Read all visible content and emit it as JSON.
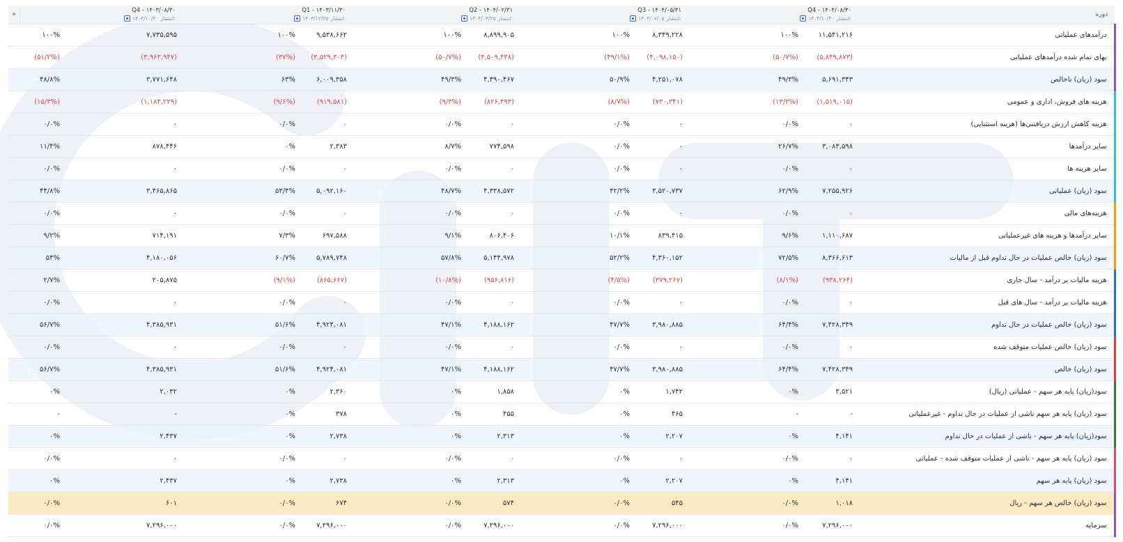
{
  "header": {
    "label": "دوره",
    "nav_symbol": "»",
    "published_prefix": "انتشار:",
    "periods": [
      {
        "title": "Q4 - ۱۴۰۳/۰۸/۳۰",
        "published": "۱۴۰۴/۱۰/۳۰"
      },
      {
        "title": "Q1 - ۱۴۰۳/۱۱/۳۰",
        "published": "۱۴۰۳/۱۲/۲۵"
      },
      {
        "title": "Q2 - ۱۴۰۴/۰۲/۳۱",
        "published": "۱۴۰۴/۰۳/۲۵"
      },
      {
        "title": "Q3 - ۱۴۰۴/۰۵/۳۱",
        "published": "۱۴۰۴/۰۷/۰۵"
      },
      {
        "title": "Q4 - ۱۴۰۴/۰۸/۳۰",
        "published": "۱۴۰۴/۱۰/۳۰"
      }
    ]
  },
  "rows": [
    {
      "label": "درآمدهای عملیاتی",
      "accent": "#7e57c2",
      "style": "",
      "cells": [
        [
          "۷,۷۳۵,۵۹۵",
          "۱۰۰%"
        ],
        [
          "۹,۵۳۸,۶۶۲",
          "۱۰۰%"
        ],
        [
          "۸,۸۹۹,۹۰۵",
          "۱۰۰%"
        ],
        [
          "۸,۳۴۹,۲۲۸",
          "۱۰۰%"
        ],
        [
          "۱۱,۵۴۱,۲۱۶",
          "۱۰۰%"
        ]
      ]
    },
    {
      "label": "بهای تمام شده درآمدهای عملیاتی",
      "accent": "#7e57c2",
      "style": "",
      "neg": true,
      "cells": [
        [
          "(۳,۹۶۳,۹۴۷)",
          "(۵۱/۲%)"
        ],
        [
          "(۳,۵۲۹,۳۰۴)",
          "(۳۷%)"
        ],
        [
          "(۴,۵۰۹,۴۳۸)",
          "(۵۰/۷%)"
        ],
        [
          "(۴,۰۹۸,۱۵۰)",
          "(۴۹/۱%)"
        ],
        [
          "(۵,۸۴۹,۸۷۳)",
          "(۵۰/۷%)"
        ]
      ]
    },
    {
      "label": "سود (زیان) ناخالص",
      "accent": "#7e57c2",
      "style": "alt",
      "cells": [
        [
          "۳,۷۷۱,۶۴۸",
          "۴۸/۸%"
        ],
        [
          "۶,۰۰۹,۳۵۸",
          "۶۳%"
        ],
        [
          "۴,۳۹۰,۴۶۷",
          "۴۹/۳%"
        ],
        [
          "۴,۲۵۱,۰۷۸",
          "۵۰/۹%"
        ],
        [
          "۵,۶۹۱,۳۴۳",
          "۴۹/۳%"
        ]
      ]
    },
    {
      "label": "هزینه های فروش، اداری و عمومی",
      "accent": "#26c6da",
      "style": "",
      "neg": true,
      "cells": [
        [
          "(۱,۱۸۴,۲۲۹)",
          "(۱۵/۳%)"
        ],
        [
          "(۹۱۹,۵۸۱)",
          "(۹/۶%)"
        ],
        [
          "(۸۲۶,۴۹۳)",
          "(۹/۳%)"
        ],
        [
          "(۷۳۰,۳۴۱)",
          "(۸/۷%)"
        ],
        [
          "(۱,۵۱۹,۰۱۵)",
          "(۱۳/۲%)"
        ]
      ]
    },
    {
      "label": "هزینه کاهش ارزش دریافتنی‌ها (هزینه استثنایی)",
      "accent": "#26c6da",
      "style": "",
      "cells": [
        [
          "۰",
          "۰/۰%"
        ],
        [
          "۰",
          "۰/۰%"
        ],
        [
          "۰",
          "۰/۰%"
        ],
        [
          "۰",
          "۰/۰%"
        ],
        [
          "۰",
          "۰/۰%"
        ]
      ]
    },
    {
      "label": "سایر درآمدها",
      "accent": "#26c6da",
      "style": "",
      "cells": [
        [
          "۸۷۸,۴۴۶",
          "۱۱/۴%"
        ],
        [
          "۲,۳۸۳",
          "۰%"
        ],
        [
          "۷۷۴,۵۹۸",
          "۸/۷%"
        ],
        [
          "۰",
          "۰/۰%"
        ],
        [
          "۳,۰۸۳,۵۹۸",
          "۲۶/۷%"
        ]
      ]
    },
    {
      "label": "سایر هزینه ها",
      "accent": "#26c6da",
      "style": "",
      "cells": [
        [
          "۰",
          "۰/۰%"
        ],
        [
          "۰",
          "۰/۰%"
        ],
        [
          "۰",
          "۰/۰%"
        ],
        [
          "۰",
          "۰/۰%"
        ],
        [
          "۰",
          "۰/۰%"
        ]
      ]
    },
    {
      "label": "سود (زیان) عملیاتی",
      "accent": "#26c6da",
      "style": "alt",
      "cells": [
        [
          "۳,۴۶۵,۸۶۵",
          "۴۴/۸%"
        ],
        [
          "۵,۰۹۲,۱۶۰",
          "۵۳/۴%"
        ],
        [
          "۴,۳۳۸,۵۷۲",
          "۴۸/۷%"
        ],
        [
          "۳,۵۲۰,۷۳۷",
          "۴۲/۲%"
        ],
        [
          "۷,۲۵۵,۹۲۶",
          "۶۲/۹%"
        ]
      ]
    },
    {
      "label": "هزینه‌های مالی",
      "accent": "#ff9800",
      "style": "",
      "cells": [
        [
          "۰",
          "۰/۰%"
        ],
        [
          "۰",
          "۰/۰%"
        ],
        [
          "۰",
          "۰/۰%"
        ],
        [
          "۰",
          "۰/۰%"
        ],
        [
          "۰",
          "۰/۰%"
        ]
      ]
    },
    {
      "label": "سایر درآمدها و هزینه های غیرعملیاتی",
      "accent": "#ff9800",
      "style": "",
      "cells": [
        [
          "۷۱۴,۱۹۱",
          "۹/۲%"
        ],
        [
          "۶۹۷,۵۸۸",
          "۷/۳%"
        ],
        [
          "۸۰۶,۴۰۶",
          "۹/۱%"
        ],
        [
          "۸۳۹,۴۱۵",
          "۱۰/۱%"
        ],
        [
          "۱,۱۱۰,۶۸۷",
          "۹/۶%"
        ]
      ]
    },
    {
      "label": "سود (زیان) خالص عملیات در حال تداوم قبل از مالیات",
      "accent": "#ff9800",
      "style": "alt",
      "cells": [
        [
          "۴,۱۸۰,۰۵۶",
          "۵۴%"
        ],
        [
          "۵,۷۸۹,۷۴۸",
          "۶۰/۷%"
        ],
        [
          "۵,۱۴۴,۹۷۸",
          "۵۷/۸%"
        ],
        [
          "۴,۳۶۰,۱۵۲",
          "۵۲/۲%"
        ],
        [
          "۸,۳۶۶,۶۱۳",
          "۷۲/۵%"
        ]
      ]
    },
    {
      "label": "هزینه مالیات بر درآمد - سال جاری",
      "accent": "#1e6fd9",
      "style": "",
      "mixed": true,
      "cells": [
        [
          "۲۰۵,۸۷۵",
          "۲/۷%"
        ],
        [
          "(۸۶۵,۶۶۷)",
          "(۹/۱%)"
        ],
        [
          "(۹۵۶,۸۱۶)",
          "(۱۰/۸%)"
        ],
        [
          "(۳۷۹,۲۶۷)",
          "(۴/۵%)"
        ],
        [
          "(۹۳۸,۲۶۴)",
          "(۸/۱%)"
        ]
      ]
    },
    {
      "label": "هزینه مالیات بر درآمد - سال های قبل",
      "accent": "#1e6fd9",
      "style": "",
      "cells": [
        [
          "۰",
          "۰/۰%"
        ],
        [
          "۰",
          "۰/۰%"
        ],
        [
          "۰",
          "۰/۰%"
        ],
        [
          "۰",
          "۰/۰%"
        ],
        [
          "۰",
          "۰/۰%"
        ]
      ]
    },
    {
      "label": "سود (زیان) خالص عملیات در حال تداوم",
      "accent": "#1e6fd9",
      "style": "alt",
      "cells": [
        [
          "۴,۳۸۵,۹۳۱",
          "۵۶/۷%"
        ],
        [
          "۴,۹۲۴,۰۸۱",
          "۵۱/۶%"
        ],
        [
          "۴,۱۸۸,۱۶۲",
          "۴۷/۱%"
        ],
        [
          "۳,۹۸۰,۸۸۵",
          "۴۷/۷%"
        ],
        [
          "۷,۴۲۸,۳۴۹",
          "۶۴/۴%"
        ]
      ]
    },
    {
      "label": "سود (زیان) خالص عملیات متوقف شده",
      "accent": "#e53935",
      "style": "",
      "cells": [
        [
          "۰",
          "۰/۰%"
        ],
        [
          "۰",
          "۰/۰%"
        ],
        [
          "۰",
          "۰/۰%"
        ],
        [
          "۰",
          "۰/۰%"
        ],
        [
          "۰",
          "۰/۰%"
        ]
      ]
    },
    {
      "label": "سود (زیان) خالص",
      "accent": "#e53935",
      "style": "alt",
      "cells": [
        [
          "۴,۳۸۵,۹۳۱",
          "۵۶/۷%"
        ],
        [
          "۴,۹۲۴,۰۸۱",
          "۵۱/۶%"
        ],
        [
          "۴,۱۸۸,۱۶۲",
          "۴۷/۱%"
        ],
        [
          "۳,۹۸۰,۸۸۵",
          "۴۷/۷%"
        ],
        [
          "۷,۴۲۸,۳۴۹",
          "۶۴/۴%"
        ]
      ]
    },
    {
      "label": "سود(زیان) پایه هر سهم - عملیاتی (ریال)",
      "accent": "#2e7d32",
      "style": "",
      "cells": [
        [
          "۲,۰۳۲",
          "۰%"
        ],
        [
          "۲,۳۶۰",
          "۰%"
        ],
        [
          "۱,۸۵۸",
          "۰%"
        ],
        [
          "۱,۷۴۲",
          "۰%"
        ],
        [
          "۳,۵۲۱",
          "۰%"
        ]
      ]
    },
    {
      "label": "سود (زیان) پایه هر سهم ناشی از عملیات در حال تداوم - غیرعملیاتی",
      "accent": "#2e7d32",
      "style": "",
      "cells": [
        [
          "-",
          "-"
        ],
        [
          "۳۷۸",
          "۰%"
        ],
        [
          "۴۵۵",
          "۰%"
        ],
        [
          "۴۶۵",
          "۰%"
        ],
        [
          "-",
          "-"
        ]
      ]
    },
    {
      "label": "سود(زیان) پایه هر سهم - ناشی از عملیات در حال تداوم",
      "accent": "#2e7d32",
      "style": "alt",
      "cells": [
        [
          "۲,۴۳۷",
          "۰%"
        ],
        [
          "۲,۷۳۸",
          "۰%"
        ],
        [
          "۲,۳۱۳",
          "۰%"
        ],
        [
          "۲,۲۰۷",
          "۰%"
        ],
        [
          "۴,۱۴۱",
          "۰%"
        ]
      ]
    },
    {
      "label": "سود (زیان) پایه هر سهم - ناشی از عملیات متوقف شده - عملیاتی",
      "accent": "#ec407a",
      "style": "",
      "cells": [
        [
          "۰",
          "۰/۰%"
        ],
        [
          "۰",
          "۰/۰%"
        ],
        [
          "۰",
          "۰/۰%"
        ],
        [
          "۰",
          "۰/۰%"
        ],
        [
          "۰",
          "۰/۰%"
        ]
      ]
    },
    {
      "label": "سود (زیان) پایه هر سهم",
      "accent": "#ec407a",
      "style": "alt",
      "cells": [
        [
          "۲,۴۳۷",
          "۰%"
        ],
        [
          "۲,۷۳۸",
          "۰%"
        ],
        [
          "۲,۳۱۳",
          "۰%"
        ],
        [
          "۲,۲۰۷",
          "۰%"
        ],
        [
          "۴,۱۴۱",
          "۰%"
        ]
      ]
    },
    {
      "label": "سود (زیان) خالص هر سهم - ریال",
      "accent": "#7e57c2",
      "style": "hl",
      "cells": [
        [
          "۶۰۱",
          "۰/۰%"
        ],
        [
          "۶۷۴",
          "۰/۰%"
        ],
        [
          "۵۷۴",
          "۰/۰%"
        ],
        [
          "۵۴۵",
          "۰/۰%"
        ],
        [
          "۱,۰۱۸",
          "۰/۰%"
        ]
      ]
    },
    {
      "label": "سرمایه",
      "accent": "#7e57c2",
      "style": "",
      "cells": [
        [
          "۷,۲۹۶,۰۰۰",
          "۰/۰%"
        ],
        [
          "۷,۲۹۶,۰۰۰",
          "۰/۰%"
        ],
        [
          "۷,۲۹۶,۰۰۰",
          "۰/۰%"
        ],
        [
          "۷,۲۹۶,۰۰۰",
          "۰/۰%"
        ],
        [
          "۷,۲۹۶,۰۰۰",
          "۰/۰%"
        ]
      ]
    }
  ]
}
